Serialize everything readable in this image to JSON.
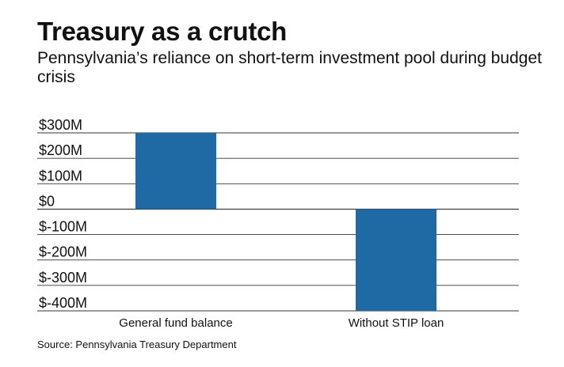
{
  "chart_data": {
    "type": "bar",
    "title": "Treasury as a crutch",
    "subtitle": "Pennsylvania’s reliance on short-term investment pool during budget crisis",
    "source": "Source: Pennsylvania Treasury Department",
    "categories": [
      "General fund balance",
      "Without STIP loan"
    ],
    "values": [
      300,
      -400
    ],
    "yticks": [
      300,
      200,
      100,
      0,
      -100,
      -200,
      -300,
      -400
    ],
    "ytick_labels": [
      "$300M",
      "$200M",
      "$100M",
      "$0",
      "$-100M",
      "$-200M",
      "$-300M",
      "$-400M"
    ],
    "ylim": [
      -400,
      300
    ],
    "grid": true,
    "legend": "none",
    "bar_color": "#1f6aa5",
    "grid_color": "#333333"
  }
}
